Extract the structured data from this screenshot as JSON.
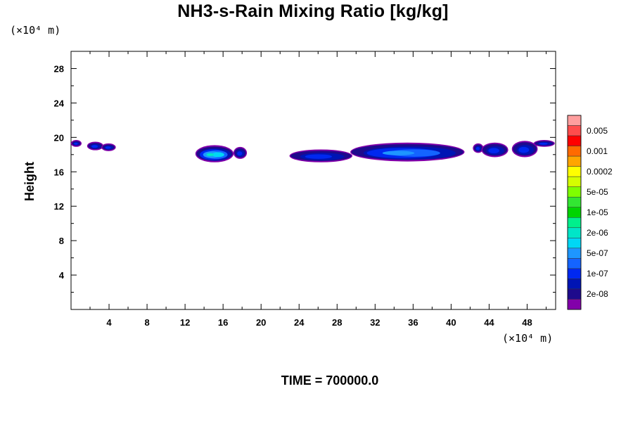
{
  "title": "NH3-s-Rain Mixing Ratio [kg/kg]",
  "x_unit_label": "(×10⁴ m)",
  "y_unit_label": "(×10⁴ m)",
  "time_label": "TIME = 700000.0",
  "chart_data": {
    "type": "heatmap",
    "title": "NH3-s-Rain Mixing Ratio [kg/kg]",
    "xlabel": "",
    "ylabel": "Height",
    "xlim": [
      0,
      51
    ],
    "ylim": [
      0,
      30
    ],
    "x_ticks": [
      4,
      8,
      12,
      16,
      20,
      24,
      28,
      32,
      36,
      40,
      44,
      48
    ],
    "y_ticks": [
      4,
      8,
      12,
      16,
      20,
      24,
      28
    ],
    "colorbar": {
      "labels": [
        "0.005",
        "0.001",
        "0.0002",
        "5e-05",
        "1e-05",
        "2e-06",
        "5e-07",
        "1e-07",
        "2e-08"
      ],
      "colors": [
        "#ff9e9e",
        "#ff4c4c",
        "#ff0000",
        "#ff6a00",
        "#ffa500",
        "#ffff00",
        "#d4ff00",
        "#7fff00",
        "#32e632",
        "#00d400",
        "#00f08c",
        "#00e6c8",
        "#00d7f5",
        "#1e96ff",
        "#1464ff",
        "#0028f0",
        "#0014b4",
        "#1e0a8c",
        "#8200aa"
      ]
    },
    "regions": [
      {
        "x": [
          0.1,
          1.0
        ],
        "y": [
          19.0,
          19.6
        ],
        "level": "1e-07"
      },
      {
        "x": [
          1.8,
          3.3
        ],
        "y": [
          18.6,
          19.4
        ],
        "level": "1e-07"
      },
      {
        "x": [
          3.3,
          4.6
        ],
        "y": [
          18.5,
          19.2
        ],
        "level": "1e-07"
      },
      {
        "x": [
          13.2,
          17.0
        ],
        "y": [
          17.2,
          19.0
        ],
        "level": "2e-06"
      },
      {
        "x": [
          17.2,
          18.4
        ],
        "y": [
          17.6,
          18.8
        ],
        "level": "1e-07"
      },
      {
        "x": [
          23.1,
          29.5
        ],
        "y": [
          17.2,
          18.5
        ],
        "level": "1e-07"
      },
      {
        "x": [
          29.5,
          41.3
        ],
        "y": [
          17.3,
          19.3
        ],
        "level": "5e-07"
      },
      {
        "x": [
          42.4,
          43.3
        ],
        "y": [
          18.3,
          19.2
        ],
        "level": "1e-07"
      },
      {
        "x": [
          43.3,
          45.9
        ],
        "y": [
          17.8,
          19.3
        ],
        "level": "1e-07"
      },
      {
        "x": [
          46.5,
          49.0
        ],
        "y": [
          17.8,
          19.5
        ],
        "level": "1e-07"
      },
      {
        "x": [
          48.8,
          50.8
        ],
        "y": [
          19.0,
          19.6
        ],
        "level": "1e-07"
      }
    ]
  }
}
